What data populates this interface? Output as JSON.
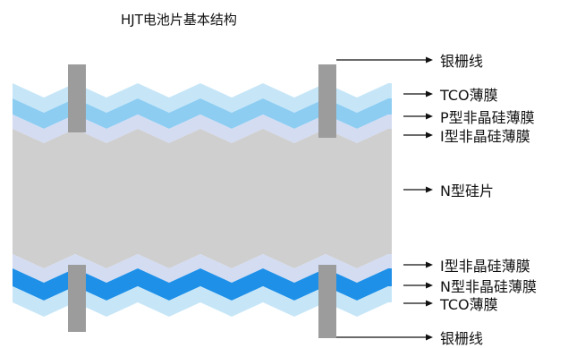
{
  "title": "HJT电池片基本结构",
  "labels": {
    "top_grid": "银栅线",
    "tco_top": "TCO薄膜",
    "p_amorphous": "P型非晶硅薄膜",
    "i_amorphous_top": "I型非晶硅薄膜",
    "n_wafer": "N型硅片",
    "i_amorphous_bottom": "I型非晶硅薄膜",
    "n_amorphous": "N型非晶硅薄膜",
    "tco_bottom": "TCO薄膜",
    "bottom_grid": "银栅线"
  },
  "colors": {
    "tco": "#c6e6f8",
    "p_layer": "#8dcdf2",
    "i_layer": "#d4dcf2",
    "wafer": "#cfcfcf",
    "n_layer": "#1e90e8",
    "grid_line": "#9c9c9c",
    "arrow": "#111111"
  }
}
